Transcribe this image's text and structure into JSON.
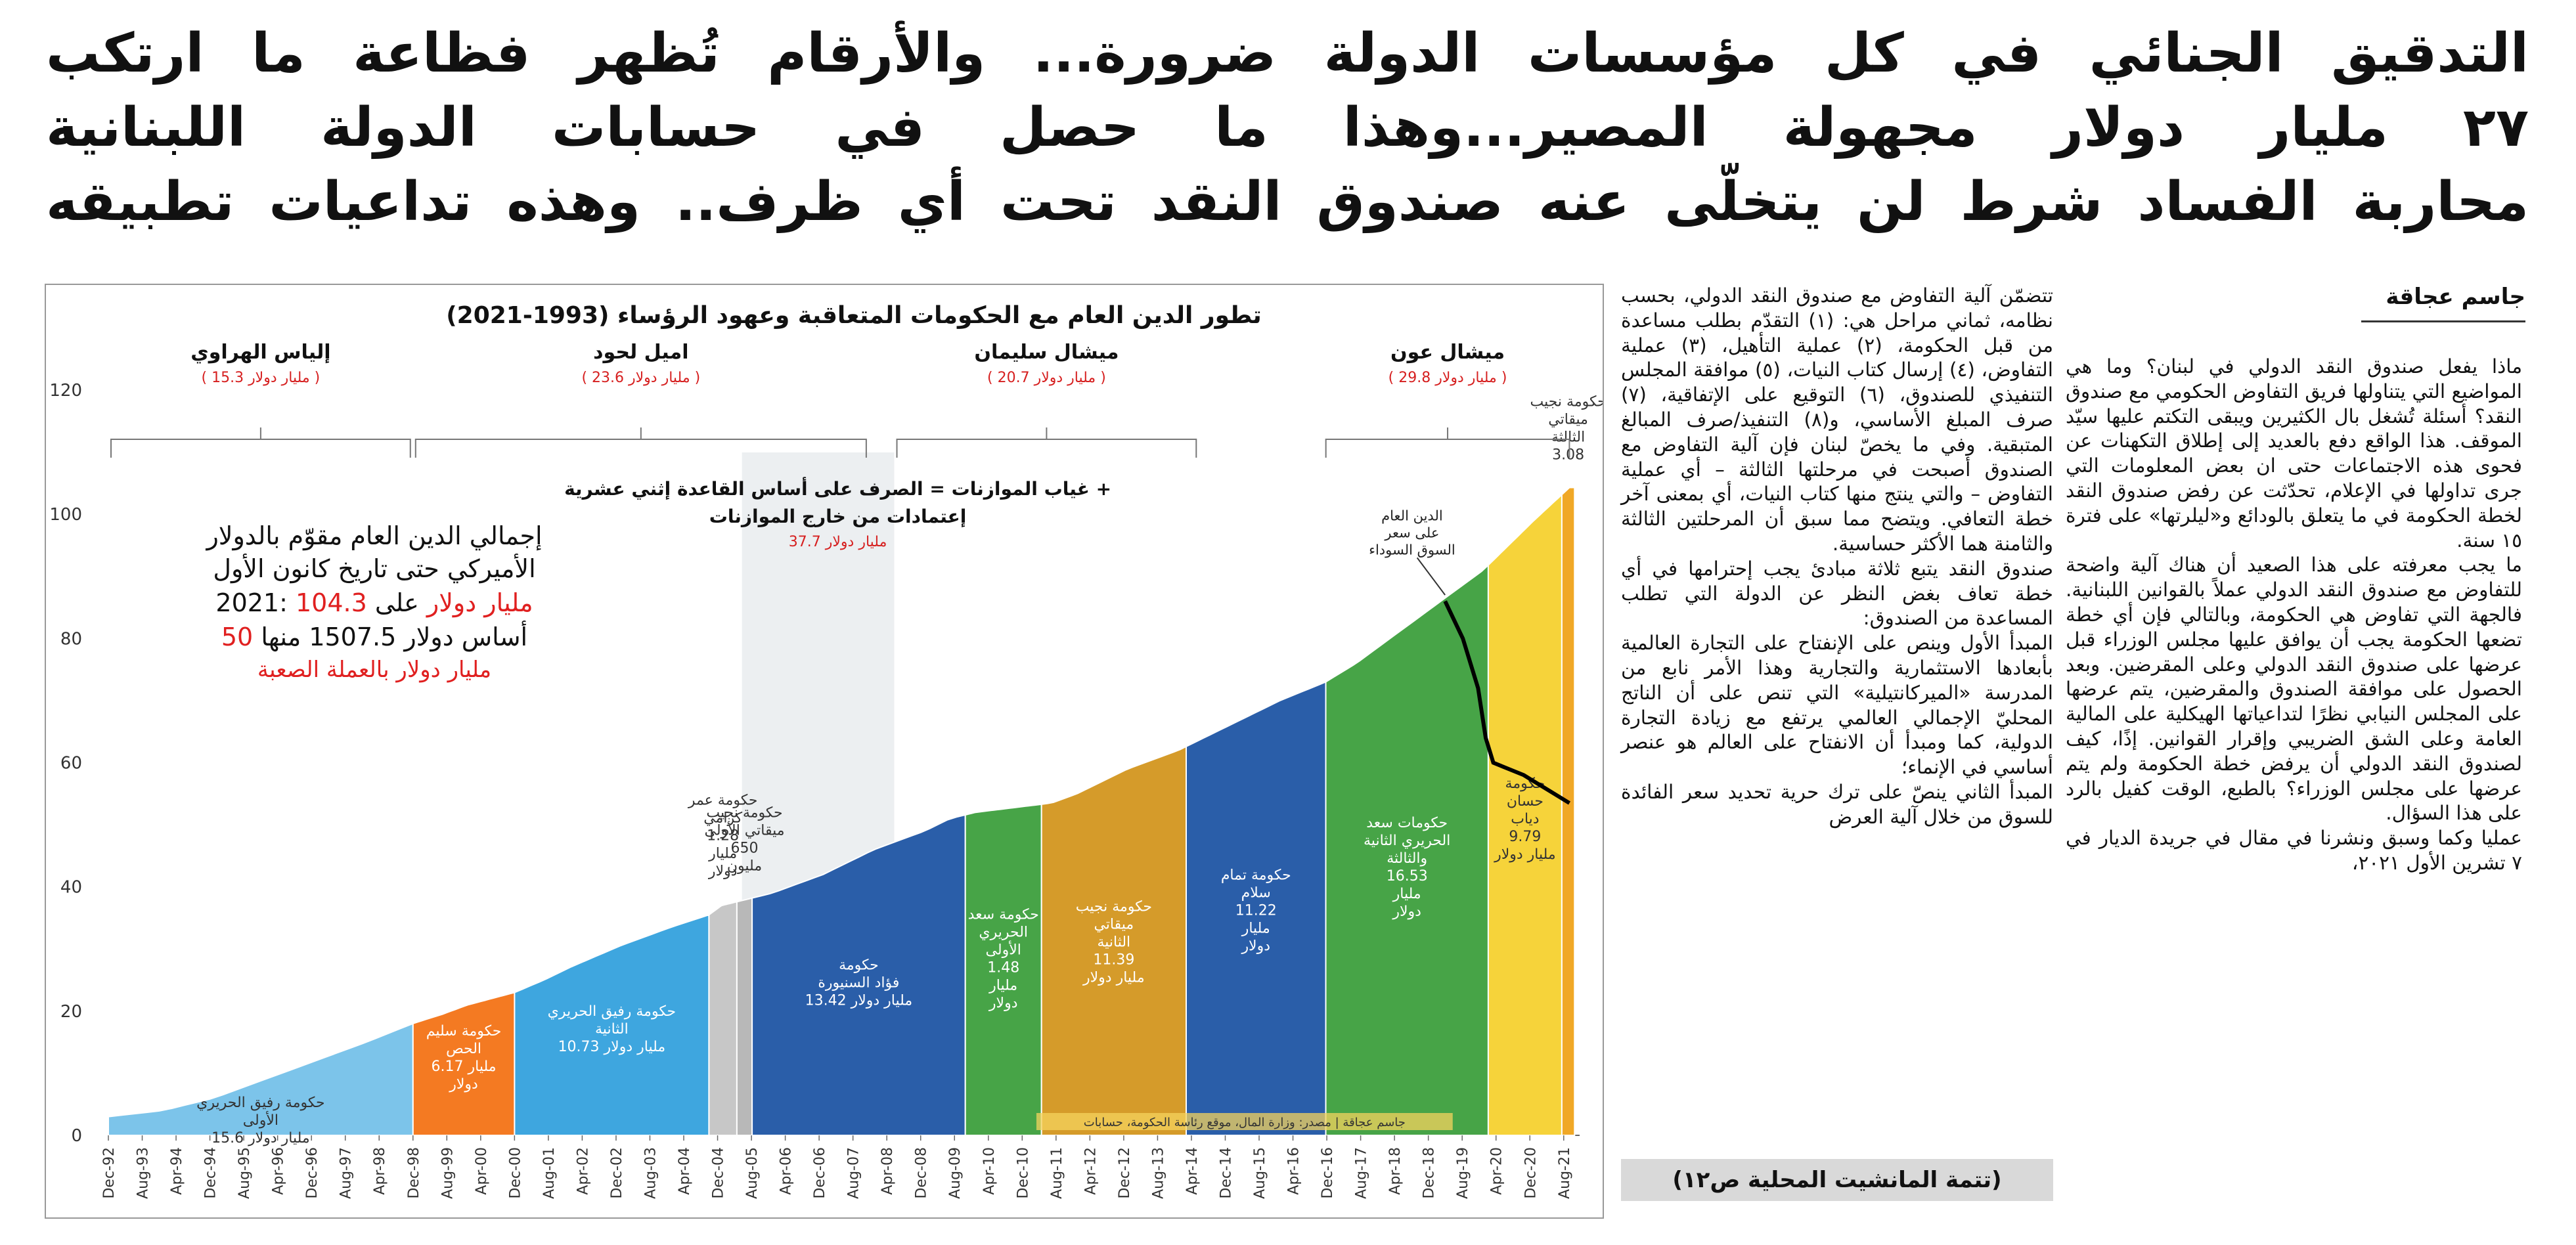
{
  "headline": {
    "line1": "التدقيق الجنائي في كل مؤسسات الدولة ضرورة... والأرقام تُظهر فظاعة ما ارتكب",
    "line2": "٢٧ مليار دولار مجهولة المصير...وهذا ما حصل في حسابات الدولة اللبنانية",
    "line3": "محاربة الفساد شرط لن يتخلّى عنه صندوق النقد تحت أي ظرف.. وهذه تداعيات تطبيقه"
  },
  "byline": "جاسم عجاقة",
  "column_right": {
    "paragraphs": [
      "ماذا يفعل صندوق النقد الدولي في لبنان؟ وما هي المواضيع التي يتناولها فريق التفاوض الحكومي مع صندوق النقد؟ أسئلة تُشغل بال الكثيرين ويبقى التكتم عليها سيّد الموقف. هذا الواقع دفع بالعديد إلى إطلاق التكهنات عن فحوى هذه الاجتماعات حتى ان بعض المعلومات التي جرى تداولها في الإعلام، تحدّثت عن رفض صندوق النقد لخطة الحكومة في ما يتعلق بالودائع و«ليلرتها» على فترة ١٥ سنة.",
      "ما يجب معرفته على هذا الصعيد أن هناك آلية واضحة للتفاوض مع صندوق النقد الدولي عملاً بالقوانين اللبنانية. فالجهة التي تفاوض هي الحكومة، وبالتالي فإن أي خطة تضعها الحكومة يجب أن يوافق عليها مجلس الوزراء قبل عرضها على صندوق النقد الدولي وعلى المقرضين. وبعد الحصول على موافقة الصندوق والمقرضين، يتم عرضها على المجلس النيابي نظرًا لتداعياتها الهيكلية على المالية العامة وعلى الشق الضريبي وإقرار القوانين. إذًا، كيف لصندوق النقد الدولي أن يرفض خطة الحكومة ولم يتم عرضها على مجلس الوزراء؟ بالطبع، الوقت كفيل بالرد على هذا السؤال.",
      "عمليا وكما وسبق ونشرنا في مقال في جريدة الديار في ٧ تشرين الأول ٢٠٢١،"
    ]
  },
  "column_middle": {
    "paragraphs": [
      "تتضمّن آلية التفاوض مع صندوق النقد الدولي، بحسب نظامه، ثماني مراحل هي: (١) التقدّم بطلب مساعدة من قبل الحكومة، (٢) عملية التأهيل، (٣) عملية التفاوض، (٤) إرسال كتاب النيات، (٥) موافقة المجلس التنفيذي للصندوق، (٦) التوقيع على الإتفاقية، (٧) صرف المبلغ الأساسي، و(٨) التنفيذ/صرف المبالغ المتبقية. وفي ما يخصّ لبنان فإن آلية التفاوض مع الصندوق أصبحت في مرحلتها الثالثة – أي عملية التفاوض – والتي ينتج منها كتاب النيات، أي بمعنى آخر خطة التعافي. ويتضح مما سبق أن المرحلتين الثالثة والثامنة هما الأكثر حساسية.",
      "صندوق النقد يتبع ثلاثة مبادئ يجب إحترامها في أي خطة تعاف بغض النظر عن الدولة التي تطلب المساعدة من الصندوق:",
      "المبدأ الأول وينص على الإنفتاح على التجارة العالمية بأبعادها الاستثمارية والتجارية وهذا الأمر نابع من المدرسة «الميركانتيلية» التي تنص على أن الناتج المحليّ الإجمالي العالمي يرتفع مع زيادة التجارة الدولية، كما ومبدأ أن الانفتاح على العالم هو عنصر أساسي في الإنماء؛",
      "المبدأ الثاني ينصّ على ترك حرية تحديد سعر الفائدة للسوق من خلال آلية العرض"
    ]
  },
  "continued_note": "(تتمة المانشيت المحلية ص١٢)",
  "chart_data": {
    "type": "area",
    "title": "تطور الدين العام مع الحكومات المتعاقبة وعهود الرؤساء (1993-2021)",
    "ylim": [
      0,
      120
    ],
    "yticks": [
      0,
      20,
      40,
      60,
      80,
      100,
      120
    ],
    "xtick_labels": [
      "Dec-92",
      "Aug-93",
      "Apr-94",
      "Dec-94",
      "Aug-95",
      "Apr-96",
      "Dec-96",
      "Aug-97",
      "Apr-98",
      "Dec-98",
      "Aug-99",
      "Apr-00",
      "Dec-00",
      "Aug-01",
      "Apr-02",
      "Dec-02",
      "Aug-03",
      "Apr-04",
      "Dec-04",
      "Aug-05",
      "Apr-06",
      "Dec-06",
      "Aug-07",
      "Apr-08",
      "Dec-08",
      "Aug-09",
      "Apr-10",
      "Dec-10",
      "Aug-11",
      "Apr-12",
      "Dec-12",
      "Aug-13",
      "Apr-14",
      "Dec-14",
      "Aug-15",
      "Apr-16",
      "Dec-16",
      "Aug-17",
      "Apr-18",
      "Dec-18",
      "Aug-19",
      "Apr-20",
      "Dec-20",
      "Aug-21"
    ],
    "debt_curve": {
      "x": [
        1992.92,
        1994.0,
        1995.0,
        1996.0,
        1997.0,
        1998.0,
        1998.92,
        1999.5,
        2000.0,
        2000.92,
        2001.5,
        2002.0,
        2003.0,
        2004.0,
        2004.75,
        2005.0,
        2005.5,
        2006.0,
        2007.0,
        2008.0,
        2009.0,
        2009.5,
        2010.0,
        2011.0,
        2011.5,
        2012.0,
        2013.0,
        2014.0,
        2015.0,
        2016.0,
        2016.9,
        2017.5,
        2018.0,
        2019.0,
        2019.5,
        2020.0,
        2020.5,
        2021.0,
        2021.7
      ],
      "y": [
        3,
        4,
        6,
        9,
        12,
        15,
        18,
        19.5,
        21,
        23,
        25,
        27,
        30.5,
        33.5,
        35.5,
        37,
        38,
        39,
        42,
        46,
        49,
        51,
        52,
        53,
        53.5,
        55,
        59,
        62,
        66,
        70,
        73,
        76,
        79,
        85,
        88,
        91,
        95,
        99,
        104.3
      ]
    },
    "black_line": {
      "label": "الدين العام على سعر السوق السوداء",
      "x": [
        2019.25,
        2019.6,
        2019.9,
        2020.05,
        2020.2,
        2020.5,
        2020.8,
        2021.0,
        2021.3,
        2021.7
      ],
      "y": [
        86,
        80,
        72,
        64,
        60,
        59,
        58,
        57,
        55.5,
        53.5
      ]
    },
    "presidents": [
      {
        "name": "إلياس الهراوي",
        "amount": "( 15.3 مليار دولار )",
        "from": 1992.92,
        "to": 1998.92
      },
      {
        "name": "اميل لحود",
        "amount": "( 23.6 مليار دولار )",
        "from": 1998.92,
        "to": 2007.9
      },
      {
        "name": "ميشال سليمان",
        "amount": "( 20.7 مليار دولار )",
        "from": 2008.4,
        "to": 2014.4
      },
      {
        "name": "ميشال عون",
        "amount": "( 29.8 مليار دولار )",
        "from": 2016.85,
        "to": 2021.75
      }
    ],
    "vacancy_box": {
      "line1": "غياب الموازنات = الصرف على أساس القاعدة إثني عشرية +",
      "line2": "إعتمادات من خارج الموازنات",
      "amount": "37.7 مليار دولار"
    },
    "info_box": {
      "line1": "إجمالي الدين العام مقوّم بالدولار",
      "line2": "الأميركي حتى تاريخ كانون الأول",
      "line3_prefix": "2021:",
      "line3_highlight": "104.3 مليار دولار",
      "line3_suffix": "على",
      "line4_prefix": "أساس دولار 1507.5 منها",
      "line4_highlight": "50",
      "line5": "مليار دولار بالعملة الصعبة"
    },
    "governments": [
      {
        "label": [
          "حكومة رفيق الحريري",
          "الأولى",
          "15.6 مليار دولار"
        ],
        "from": 1992.92,
        "to": 1998.92,
        "color": "#7cc4ea"
      },
      {
        "label": [
          "حكومة سليم",
          "الحص",
          "6.17 مليار",
          "دولار"
        ],
        "from": 1998.92,
        "to": 2000.92,
        "color": "#f47a22"
      },
      {
        "label": [
          "حكومة رفيق الحريري",
          "الثانية",
          "10.73 مليار دولار"
        ],
        "from": 2000.92,
        "to": 2004.75,
        "color": "#3ea6df"
      },
      {
        "label": [
          "حكومة عمر",
          "كرامي",
          "1.28",
          "مليار",
          "دولار"
        ],
        "from": 2004.75,
        "to": 2005.3,
        "color": "#c7c7c7"
      },
      {
        "label": [
          "حكومة نجيب",
          "ميقاتي الأولى",
          "650",
          "مليون"
        ],
        "from": 2005.3,
        "to": 2005.6,
        "color": "#b8b8b8"
      },
      {
        "label": [
          "حكومة",
          "فؤاد السنيورة",
          "13.42 مليار دولار"
        ],
        "from": 2005.6,
        "to": 2009.8,
        "color": "#2a5ea9"
      },
      {
        "label": [
          "حكومة سعد",
          "الحريري",
          "الأولى",
          "1.48",
          "مليار",
          "دولار"
        ],
        "from": 2009.8,
        "to": 2011.3,
        "color": "#47a447"
      },
      {
        "label": [
          "حكومة نجيب",
          "ميقاتي",
          "الثانية",
          "11.39",
          "مليار دولار"
        ],
        "from": 2011.3,
        "to": 2014.15,
        "color": "#d59b2a"
      },
      {
        "label": [
          "حكومة تمام",
          "سلام",
          "11.22",
          "مليار",
          "دولار"
        ],
        "from": 2014.15,
        "to": 2016.9,
        "color": "#2a5ea9"
      },
      {
        "label": [
          "حكومات سعد",
          "الحريري الثانية",
          "والثالثة",
          "16.53",
          "مليار",
          "دولار"
        ],
        "from": 2016.9,
        "to": 2020.1,
        "color": "#47a447"
      },
      {
        "label": [
          "حكومة",
          "حسان",
          "دياب",
          "9.79",
          "مليار دولار"
        ],
        "from": 2020.1,
        "to": 2021.55,
        "color": "#f6d33a"
      },
      {
        "label": [
          "حكومة نجيب",
          "ميقاتي",
          "الثالثة",
          "3.08"
        ],
        "from": 2021.55,
        "to": 2021.8,
        "color": "#f0a826"
      }
    ],
    "source_note": "جاسم عجاقة | مصدر: وزارة المال، موقع رئاسة الحكومة، حسابات"
  }
}
